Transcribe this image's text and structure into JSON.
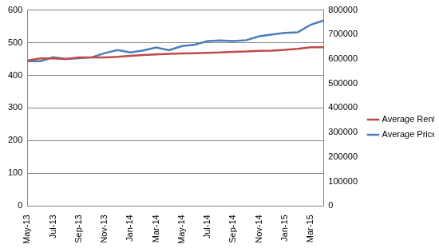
{
  "chart_data": {
    "type": "line",
    "categories": [
      "May-13",
      null,
      "Jul-13",
      null,
      "Sep-13",
      null,
      "Nov-13",
      null,
      "Jan-14",
      null,
      "Mar-14",
      null,
      "May-14",
      null,
      "Jul-14",
      null,
      "Sep-14",
      null,
      "Nov-14",
      null,
      "Jan-15",
      null,
      "Mar-15",
      null
    ],
    "series": [
      {
        "name": "Average Rental",
        "color": "#be4b48",
        "axis": "y",
        "values": [
          445,
          452,
          452,
          450,
          455,
          455,
          455,
          457,
          460,
          462,
          464,
          466,
          467,
          468,
          469,
          470,
          472,
          473,
          475,
          476,
          478,
          481,
          486,
          486
        ]
      },
      {
        "name": "Average Price",
        "color": "#4a7ebb",
        "axis": "y2",
        "values": [
          591000,
          591000,
          607000,
          600000,
          603000,
          607000,
          624000,
          637000,
          627000,
          635000,
          647000,
          636000,
          653000,
          659000,
          673000,
          676000,
          673000,
          677000,
          693000,
          700000,
          707000,
          709000,
          740000,
          757000
        ]
      }
    ],
    "ylim": [
      0,
      600
    ],
    "yticks": [
      0,
      100,
      200,
      300,
      400,
      500,
      600
    ],
    "y2lim": [
      0,
      800000
    ],
    "y2ticks": [
      0,
      100000,
      200000,
      300000,
      400000,
      500000,
      600000,
      700000,
      800000
    ],
    "grid": true,
    "legend": "right"
  }
}
